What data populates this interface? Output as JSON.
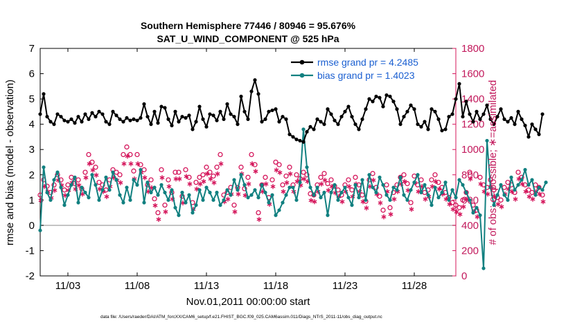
{
  "chart_data": {
    "type": "line",
    "title_line1": "Southern Hemisphere 77446 / 80946 = 95.676%",
    "title_line2": "SAT_U_WIND_COMPONENT @ 525 hPa",
    "xlabel": "Nov.01,2011 00:00:00 start",
    "ylabel_left": "rmse and bias (model - observation)",
    "ylabel_right": "# of obs: o=possible; ∗=assimilated",
    "footer": "data file: /Users/raeder/DAI/ATM_forcXX/CAM6_setup/f.e21.FHIST_BGC.f09_025.CAM6assim.011/Diags_NTrS_2011-11/obs_diag_output.nc",
    "x_ticks": [
      {
        "day": 3,
        "label": "11/03"
      },
      {
        "day": 8,
        "label": "11/08"
      },
      {
        "day": 13,
        "label": "11/13"
      },
      {
        "day": 18,
        "label": "11/18"
      },
      {
        "day": 23,
        "label": "11/23"
      },
      {
        "day": 28,
        "label": "11/28"
      }
    ],
    "xlim": [
      1,
      31
    ],
    "ylim_left": [
      -2,
      7
    ],
    "ylim_right": [
      0,
      1800
    ],
    "y_ticks_left": [
      "-2",
      "-1",
      "0",
      "1",
      "2",
      "3",
      "4",
      "5",
      "6",
      "7"
    ],
    "y_ticks_right": [
      "0",
      "200",
      "400",
      "600",
      "800",
      "1000",
      "1200",
      "1400",
      "1600",
      "1800"
    ],
    "colors": {
      "rmse": "#000000",
      "bias": "#118080",
      "obs": "#d4145a",
      "legend_text": "#1a5fd1",
      "zero_line": "#b0b0b0"
    },
    "legend": [
      {
        "key": "rmse",
        "label": "rmse grand pr = 4.2485"
      },
      {
        "key": "bias",
        "label": "bias grand pr = 1.4023"
      }
    ],
    "series": [
      {
        "name": "rmse",
        "axis": "left",
        "x0": 1.0,
        "dx": 0.25,
        "values": [
          4.4,
          5.2,
          4.3,
          4.1,
          4.0,
          4.4,
          4.3,
          4.15,
          4.1,
          4.2,
          4.05,
          4.3,
          4.1,
          4.4,
          4.2,
          4.45,
          4.3,
          4.5,
          4.4,
          4.1,
          4.0,
          4.5,
          4.35,
          4.2,
          4.1,
          4.25,
          4.15,
          4.2,
          4.15,
          4.25,
          4.8,
          4.3,
          4.0,
          4.5,
          4.05,
          4.7,
          4.65,
          4.2,
          3.95,
          4.5,
          4.1,
          4.3,
          4.25,
          4.35,
          3.8,
          4.1,
          4.7,
          4.2,
          3.9,
          4.4,
          4.35,
          4.15,
          4.5,
          4.2,
          4.8,
          4.4,
          4.3,
          4.0,
          5.1,
          4.5,
          4.2,
          5.3,
          5.75,
          5.2,
          4.1,
          4.2,
          4.5,
          4.55,
          4.6,
          4.1,
          4.3,
          4.2,
          3.6,
          3.5,
          3.4,
          3.35,
          3.3,
          3.7,
          3.9,
          3.8,
          4.2,
          4.1,
          4.0,
          4.6,
          4.4,
          4.15,
          4.0,
          4.3,
          4.5,
          4.7,
          4.3,
          4.0,
          3.8,
          4.2,
          4.6,
          5.0,
          4.9,
          5.1,
          5.05,
          4.7,
          5.15,
          5.1,
          4.9,
          4.6,
          4.0,
          4.3,
          4.5,
          4.75,
          4.6,
          4.0,
          3.9,
          4.1,
          3.8,
          4.6,
          4.5,
          4.2,
          3.75,
          3.8,
          4.3,
          4.4,
          5.0,
          5.6,
          4.3,
          4.9,
          4.4,
          4.1,
          4.5,
          4.2,
          4.4,
          4.75,
          4.2,
          4.0,
          4.3,
          4.6,
          4.2,
          4.1,
          4.25,
          4.0,
          4.5,
          4.2,
          3.95,
          3.5,
          4.0,
          3.8,
          3.6,
          4.4
        ]
      },
      {
        "name": "bias",
        "axis": "left",
        "x0": 1.0,
        "dx": 0.25,
        "values": [
          -0.2,
          2.3,
          1.3,
          1.0,
          1.8,
          2.1,
          1.5,
          0.8,
          1.2,
          1.6,
          1.9,
          0.9,
          1.5,
          1.3,
          1.1,
          2.0,
          1.6,
          1.0,
          1.4,
          1.9,
          1.4,
          2.1,
          1.8,
          1.2,
          0.9,
          1.5,
          1.0,
          1.8,
          1.6,
          2.2,
          0.9,
          1.7,
          1.3,
          1.5,
          1.2,
          1.6,
          1.3,
          1.0,
          1.4,
          0.7,
          0.4,
          1.3,
          0.9,
          1.2,
          0.5,
          0.8,
          1.4,
          1.0,
          1.5,
          1.3,
          1.0,
          1.3,
          0.8,
          1.0,
          1.4,
          1.2,
          1.8,
          1.4,
          2.0,
          1.6,
          1.1,
          1.2,
          1.4,
          1.1,
          1.6,
          1.3,
          0.9,
          1.2,
          0.4,
          0.6,
          0.9,
          1.2,
          1.5,
          1.5,
          1.0,
          1.7,
          3.8,
          2.3,
          1.5,
          1.2,
          1.5,
          1.1,
          1.3,
          0.4,
          1.3,
          1.6,
          1.0,
          1.3,
          1.5,
          1.1,
          0.8,
          1.6,
          1.1,
          1.8,
          1.0,
          2.0,
          1.5,
          1.3,
          1.9,
          1.6,
          1.2,
          1.0,
          1.5,
          1.4,
          1.9,
          1.2,
          1.0,
          1.4,
          1.7,
          2.0,
          1.3,
          1.6,
          1.2,
          0.8,
          1.5,
          1.1,
          1.3,
          1.7,
          1.0,
          1.4,
          1.1,
          1.8,
          1.6,
          1.3,
          1.0,
          0.5,
          0.7,
          0.4,
          -1.7,
          3.35,
          1.5,
          0.8,
          1.2,
          1.6,
          1.2,
          1.0,
          1.9,
          1.4,
          1.6,
          1.8,
          2.2,
          1.6,
          1.8,
          1.2,
          1.5,
          1.4,
          1.7
        ]
      },
      {
        "name": "obs_possible",
        "axis": "right",
        "marker": "o",
        "x0": 1.0,
        "dx": 0.25,
        "values": [
          640,
          760,
          710,
          660,
          720,
          800,
          760,
          680,
          720,
          780,
          730,
          760,
          690,
          820,
          960,
          900,
          860,
          740,
          720,
          680,
          760,
          840,
          820,
          800,
          960,
          1020,
          960,
          830,
          960,
          880,
          840,
          720,
          760,
          610,
          500,
          840,
          560,
          760,
          660,
          820,
          820,
          630,
          840,
          780,
          580,
          740,
          780,
          800,
          860,
          820,
          790,
          860,
          960,
          640,
          660,
          700,
          560,
          700,
          860,
          690,
          780,
          960,
          880,
          500,
          720,
          780,
          620,
          760,
          900,
          880,
          720,
          790,
          860,
          720,
          800,
          770,
          820,
          800,
          650,
          640,
          720,
          780,
          810,
          730,
          760,
          710,
          680,
          640,
          720,
          760,
          680,
          780,
          720,
          640,
          590,
          760,
          810,
          700,
          630,
          520,
          720,
          540,
          660,
          720,
          780,
          800,
          730,
          580,
          790,
          720,
          760,
          660,
          680,
          760,
          800,
          740,
          700,
          660,
          620,
          580,
          560,
          540,
          600,
          660,
          820,
          560,
          520,
          780,
          720,
          700,
          760,
          680,
          620,
          600,
          700,
          740,
          720,
          660,
          820,
          780,
          720,
          680,
          660,
          720,
          700,
          640
        ]
      },
      {
        "name": "obs_assimilated",
        "axis": "right",
        "marker": "*",
        "x0": 1.0,
        "dx": 0.25,
        "values": [
          630,
          740,
          700,
          650,
          710,
          790,
          750,
          670,
          710,
          770,
          720,
          750,
          680,
          810,
          920,
          870,
          830,
          720,
          700,
          660,
          740,
          810,
          790,
          770,
          920,
          980,
          920,
          800,
          920,
          850,
          810,
          700,
          730,
          590,
          480,
          810,
          540,
          740,
          640,
          800,
          800,
          610,
          820,
          760,
          560,
          720,
          760,
          780,
          840,
          800,
          770,
          840,
          920,
          620,
          640,
          680,
          540,
          680,
          840,
          670,
          760,
          920,
          860,
          480,
          700,
          760,
          600,
          740,
          870,
          850,
          700,
          770,
          840,
          700,
          780,
          750,
          800,
          780,
          630,
          620,
          700,
          760,
          790,
          710,
          740,
          690,
          660,
          620,
          700,
          740,
          660,
          760,
          700,
          620,
          570,
          740,
          790,
          680,
          610,
          500,
          700,
          520,
          640,
          700,
          760,
          780,
          710,
          560,
          770,
          700,
          740,
          640,
          660,
          740,
          780,
          720,
          680,
          640,
          600,
          560,
          540,
          520,
          580,
          640,
          800,
          540,
          500,
          760,
          700,
          680,
          740,
          660,
          600,
          580,
          680,
          720,
          700,
          640,
          800,
          760,
          700,
          660,
          640,
          700,
          680,
          620
        ]
      }
    ]
  }
}
